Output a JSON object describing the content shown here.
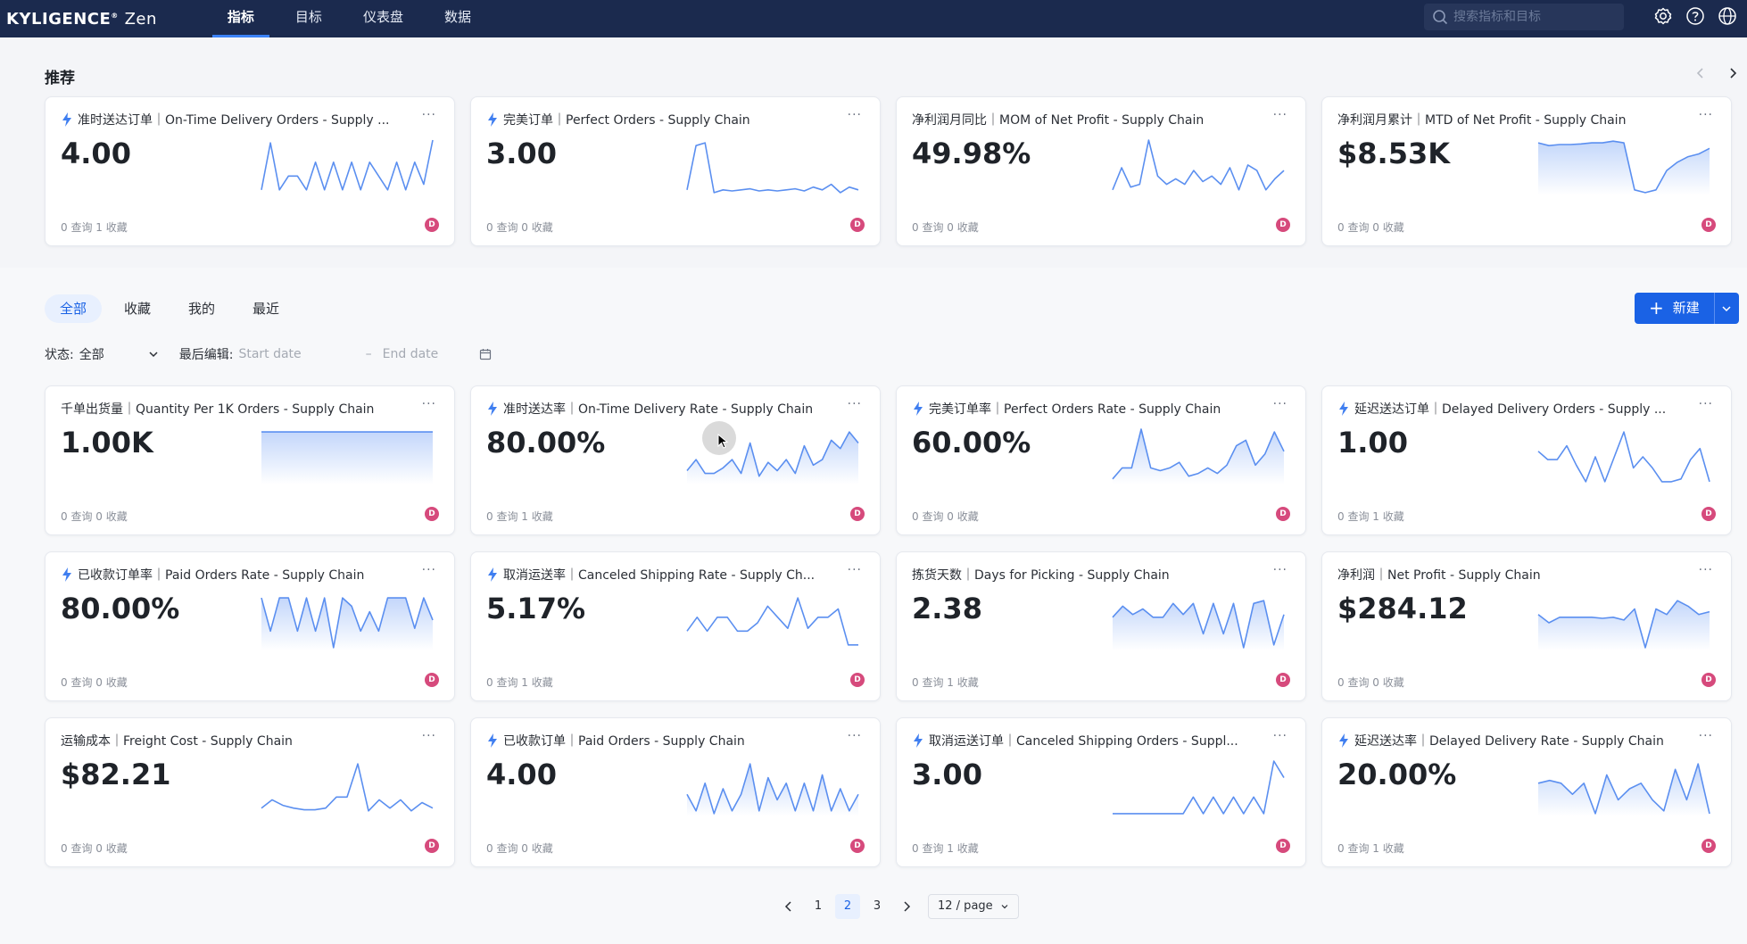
{
  "app": {
    "logo": "KYLIGENCE",
    "logo_suffix": "Zen",
    "nav": [
      "指标",
      "目标",
      "仪表盘",
      "数据"
    ],
    "active_nav": 0,
    "search_placeholder": "搜索指标和目标"
  },
  "recommend": {
    "title": "推荐",
    "cards": [
      {
        "title": "准时送达订单｜On-Time Delivery Orders - Supply ...",
        "bolt": true,
        "value": "4.00",
        "footer": "0 查询 1 收藏",
        "avatar": "D",
        "fill": false,
        "spark": [
          0.1,
          0.95,
          0.1,
          0.35,
          0.35,
          0.1,
          0.6,
          0.1,
          0.6,
          0.1,
          0.6,
          0.1,
          0.6,
          0.35,
          0.1,
          0.6,
          0.1,
          0.6,
          0.2,
          1.0
        ]
      },
      {
        "title": "完美订单｜Perfect Orders - Supply Chain",
        "bolt": true,
        "value": "3.00",
        "footer": "0 查询 0 收藏",
        "avatar": "D",
        "fill": false,
        "spark": [
          0.1,
          0.9,
          0.95,
          0.05,
          0.1,
          0.08,
          0.1,
          0.12,
          0.08,
          0.1,
          0.08,
          0.1,
          0.12,
          0.08,
          0.15,
          0.1,
          0.2,
          0.05,
          0.15,
          0.1
        ]
      },
      {
        "title": "净利润月同比｜MOM of Net Profit - Supply Chain",
        "bolt": false,
        "value": "49.98%",
        "footer": "0 查询 0 收藏",
        "avatar": "D",
        "fill": false,
        "spark": [
          0.1,
          0.5,
          0.15,
          0.2,
          1.0,
          0.35,
          0.2,
          0.3,
          0.2,
          0.45,
          0.25,
          0.35,
          0.2,
          0.5,
          0.1,
          0.55,
          0.45,
          0.1,
          0.3,
          0.45
        ]
      },
      {
        "title": "净利润月累计｜MTD of Net Profit - Supply Chain",
        "bolt": false,
        "value": "$8.53K",
        "footer": "0 查询 0 收藏",
        "avatar": "D",
        "fill": true,
        "spark": [
          0.95,
          0.9,
          0.92,
          0.92,
          0.93,
          0.95,
          0.95,
          0.98,
          0.95,
          0.1,
          0.05,
          0.1,
          0.45,
          0.6,
          0.7,
          0.75,
          0.85
        ]
      }
    ]
  },
  "tabs": [
    "全部",
    "收藏",
    "我的",
    "最近"
  ],
  "active_tab": 0,
  "new_button": "新建",
  "filters": {
    "status_label": "状态:",
    "status_value": "全部",
    "edit_label": "最后编辑:",
    "start_placeholder": "Start date",
    "end_placeholder": "End date"
  },
  "metrics": [
    {
      "title": "千单出货量｜Quantity Per 1K Orders - Supply Chain",
      "bolt": false,
      "value": "1.00K",
      "footer": "0 查询 0 收藏",
      "avatar": "D",
      "fill": true,
      "spark": [
        0.95,
        0.95,
        0.95,
        0.95,
        0.95,
        0.95,
        0.95,
        0.95,
        0.95,
        0.95
      ]
    },
    {
      "title": "准时送达率｜On-Time Delivery Rate - Supply Chain",
      "bolt": true,
      "value": "80.00%",
      "footer": "0 查询 1 收藏",
      "avatar": "D",
      "fill": true,
      "spark": [
        0.25,
        0.45,
        0.2,
        0.2,
        0.3,
        0.45,
        0.2,
        0.75,
        0.15,
        0.4,
        0.25,
        0.45,
        0.2,
        0.7,
        0.35,
        0.45,
        0.8,
        0.65,
        0.95,
        0.75
      ]
    },
    {
      "title": "完美订单率｜Perfect Orders Rate - Supply Chain",
      "bolt": true,
      "value": "60.00%",
      "footer": "0 查询 0 收藏",
      "avatar": "D",
      "fill": true,
      "spark": [
        0.1,
        0.3,
        0.3,
        1.0,
        0.3,
        0.25,
        0.3,
        0.4,
        0.15,
        0.2,
        0.3,
        0.2,
        0.35,
        0.7,
        0.8,
        0.35,
        0.55,
        0.95,
        0.6
      ]
    },
    {
      "title": "延迟送达订单｜Delayed Delivery Orders - Supply ...",
      "bolt": true,
      "value": "1.00",
      "footer": "0 查询 1 收藏",
      "avatar": "D",
      "fill": false,
      "spark": [
        0.6,
        0.45,
        0.45,
        0.7,
        0.35,
        0.05,
        0.5,
        0.05,
        0.5,
        0.95,
        0.3,
        0.5,
        0.3,
        0.05,
        0.05,
        0.1,
        0.45,
        0.65,
        0.05
      ]
    },
    {
      "title": "已收款订单率｜Paid Orders Rate - Supply Chain",
      "bolt": true,
      "value": "80.00%",
      "footer": "0 查询 0 收藏",
      "avatar": "D",
      "fill": true,
      "spark": [
        0.95,
        0.35,
        0.95,
        0.95,
        0.35,
        0.95,
        0.35,
        0.95,
        0.05,
        0.95,
        0.8,
        0.35,
        0.7,
        0.35,
        0.95,
        0.95,
        0.95,
        0.4,
        0.95,
        0.55
      ]
    },
    {
      "title": "取消运送率｜Canceled Shipping Rate - Supply Ch...",
      "bolt": true,
      "value": "5.17%",
      "footer": "0 查询 1 收藏",
      "avatar": "D",
      "fill": false,
      "spark": [
        0.35,
        0.6,
        0.35,
        0.6,
        0.6,
        0.35,
        0.35,
        0.5,
        0.8,
        0.6,
        0.4,
        0.95,
        0.4,
        0.6,
        0.6,
        0.75,
        0.1,
        0.1
      ]
    },
    {
      "title": "拣货天数｜Days for Picking - Supply Chain",
      "bolt": false,
      "value": "2.38",
      "footer": "0 查询 1 收藏",
      "avatar": "D",
      "fill": true,
      "spark": [
        0.6,
        0.8,
        0.65,
        0.75,
        0.6,
        0.6,
        0.85,
        0.65,
        0.85,
        0.3,
        0.85,
        0.3,
        0.85,
        0.05,
        0.85,
        0.9,
        0.1,
        0.65
      ]
    },
    {
      "title": "净利润｜Net Profit - Supply Chain",
      "bolt": false,
      "value": "$284.12",
      "footer": "0 查询 0 收藏",
      "avatar": "D",
      "fill": true,
      "spark": [
        0.65,
        0.5,
        0.6,
        0.6,
        0.6,
        0.6,
        0.58,
        0.6,
        0.55,
        0.75,
        0.05,
        0.75,
        0.65,
        0.9,
        0.8,
        0.65,
        0.7
      ]
    },
    {
      "title": "运输成本｜Freight Cost - Supply Chain",
      "bolt": false,
      "value": "$82.21",
      "footer": "0 查询 0 收藏",
      "avatar": "D",
      "fill": false,
      "spark": [
        0.15,
        0.3,
        0.2,
        0.15,
        0.12,
        0.12,
        0.15,
        0.35,
        0.35,
        0.95,
        0.1,
        0.3,
        0.15,
        0.3,
        0.1,
        0.25,
        0.15
      ]
    },
    {
      "title": "已收款订单｜Paid Orders - Supply Chain",
      "bolt": true,
      "value": "4.00",
      "footer": "0 查询 0 收藏",
      "avatar": "D",
      "fill": true,
      "spark": [
        0.4,
        0.1,
        0.6,
        0.05,
        0.5,
        0.1,
        0.4,
        0.95,
        0.1,
        0.7,
        0.3,
        0.6,
        0.1,
        0.6,
        0.1,
        0.75,
        0.1,
        0.5,
        0.1,
        0.4
      ]
    },
    {
      "title": "取消运送订单｜Canceled Shipping Orders - Suppl...",
      "bolt": true,
      "value": "3.00",
      "footer": "0 查询 1 收藏",
      "avatar": "D",
      "fill": false,
      "spark": [
        0.05,
        0.05,
        0.05,
        0.05,
        0.05,
        0.05,
        0.05,
        0.05,
        0.35,
        0.05,
        0.35,
        0.05,
        0.35,
        0.05,
        0.35,
        0.05,
        1.0,
        0.7
      ]
    },
    {
      "title": "延迟送达率｜Delayed Delivery Rate - Supply Chain",
      "bolt": true,
      "value": "20.00%",
      "footer": "0 查询 1 收藏",
      "avatar": "D",
      "fill": true,
      "spark": [
        0.6,
        0.65,
        0.6,
        0.4,
        0.6,
        0.05,
        0.75,
        0.3,
        0.5,
        0.6,
        0.3,
        0.1,
        0.85,
        0.3,
        0.95,
        0.05
      ]
    }
  ],
  "pagination": {
    "pages": [
      "1",
      "2",
      "3"
    ],
    "active": "2",
    "page_size": "12 / page"
  },
  "colors": {
    "topbar": "#1b2a4e",
    "accent": "#1a62e5",
    "spark_line": "#5b8ff0",
    "avatar": "#d64a7c"
  }
}
